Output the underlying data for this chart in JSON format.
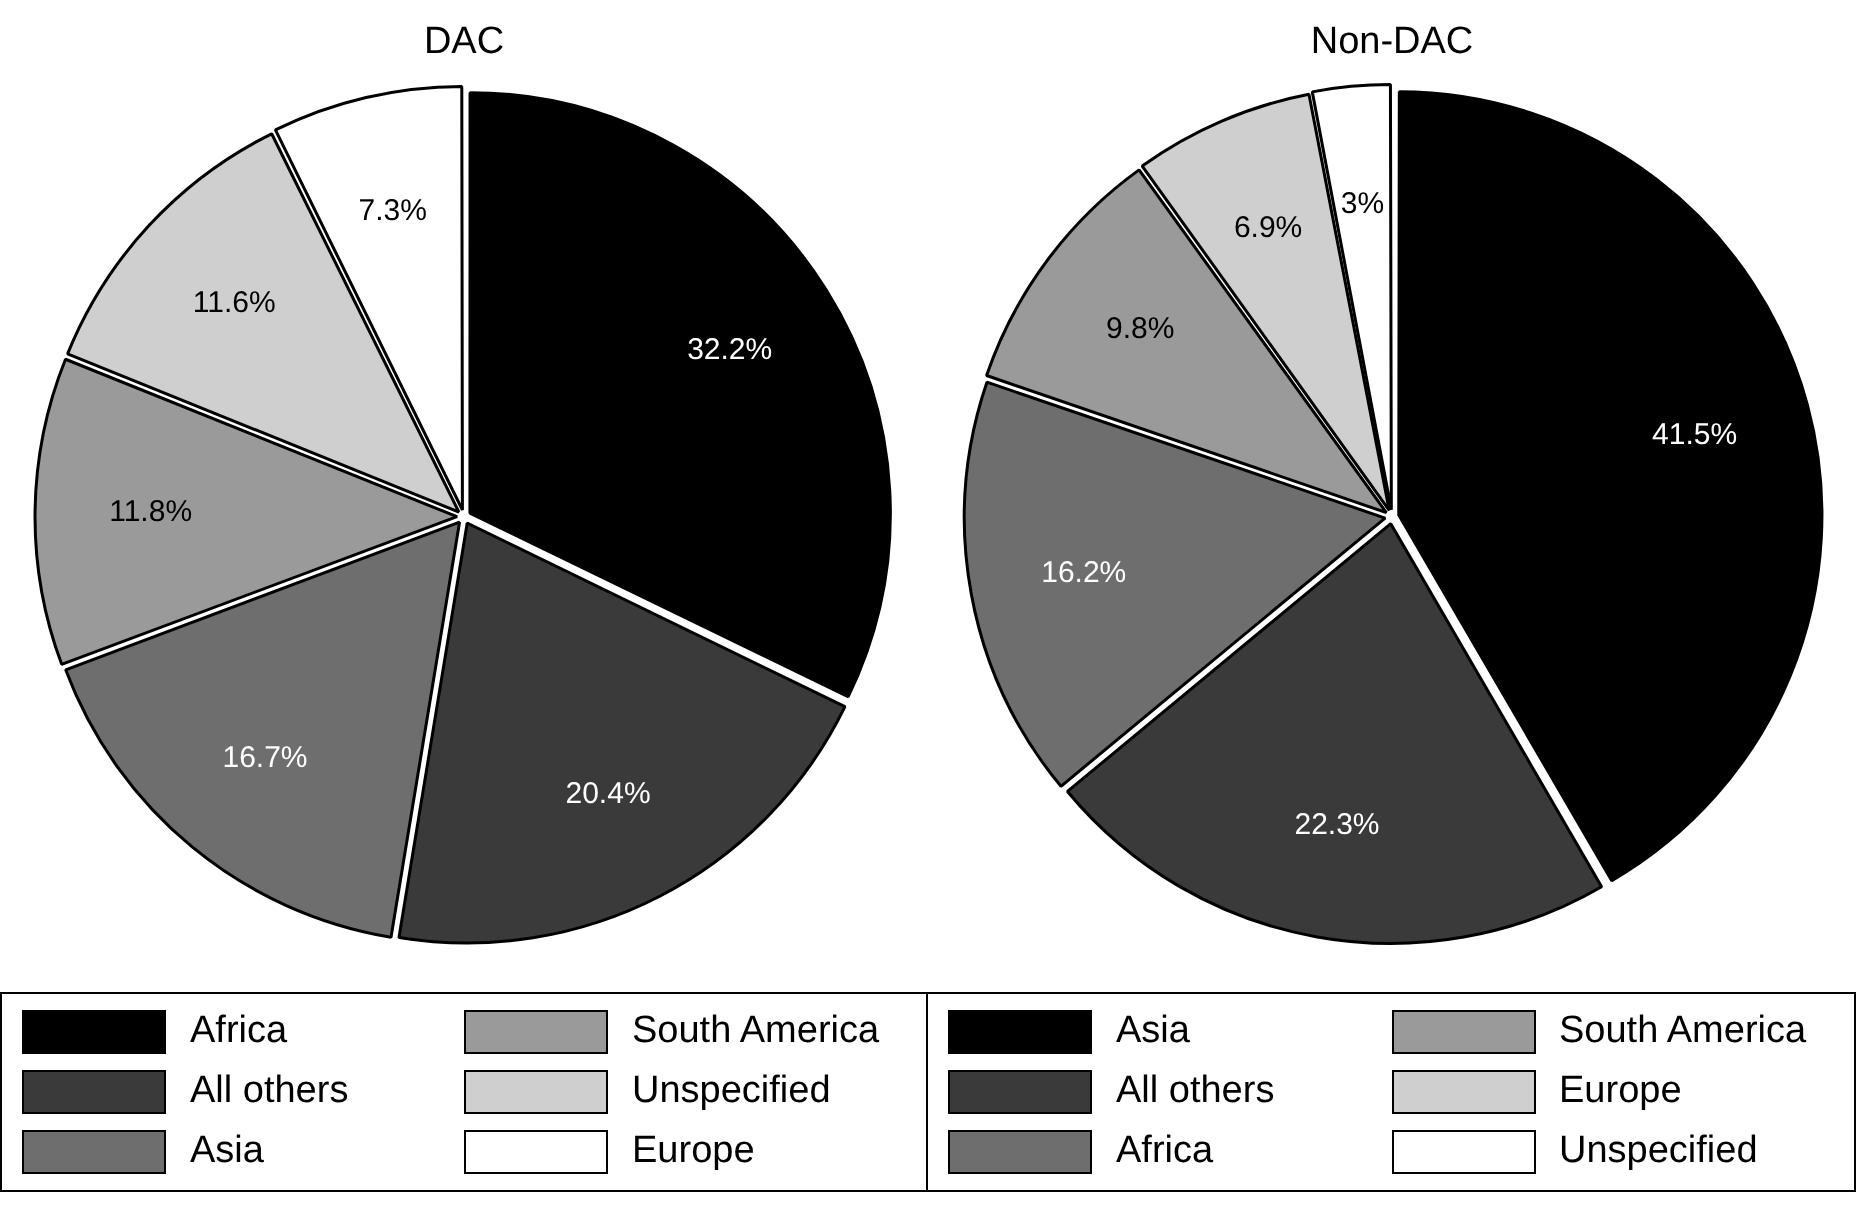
{
  "chart_data": [
    {
      "type": "pie",
      "title": "DAC",
      "categories": [
        "Africa",
        "All others",
        "Asia",
        "South America",
        "Unspecified",
        "Europe"
      ],
      "values": [
        32.2,
        20.4,
        16.7,
        11.8,
        11.6,
        7.3
      ],
      "value_labels": [
        "32.2%",
        "20.4%",
        "16.7%",
        "11.8%",
        "11.6%",
        "7.3%"
      ],
      "colors": [
        "#000000",
        "#3a3a3a",
        "#6e6e6e",
        "#9a9a9a",
        "#cfcfcf",
        "#ffffff"
      ],
      "legend": "bottom"
    },
    {
      "type": "pie",
      "title": "Non-DAC",
      "categories": [
        "Asia",
        "All others",
        "Africa",
        "South America",
        "Europe",
        "Unspecified"
      ],
      "values": [
        41.5,
        22.3,
        16.2,
        9.8,
        6.9,
        3
      ],
      "value_labels": [
        "41.5%",
        "22.3%",
        "16.2%",
        "9.8%",
        "6.9%",
        "3%"
      ],
      "colors": [
        "#000000",
        "#3a3a3a",
        "#6e6e6e",
        "#9a9a9a",
        "#cfcfcf",
        "#ffffff"
      ],
      "legend": "bottom"
    }
  ]
}
